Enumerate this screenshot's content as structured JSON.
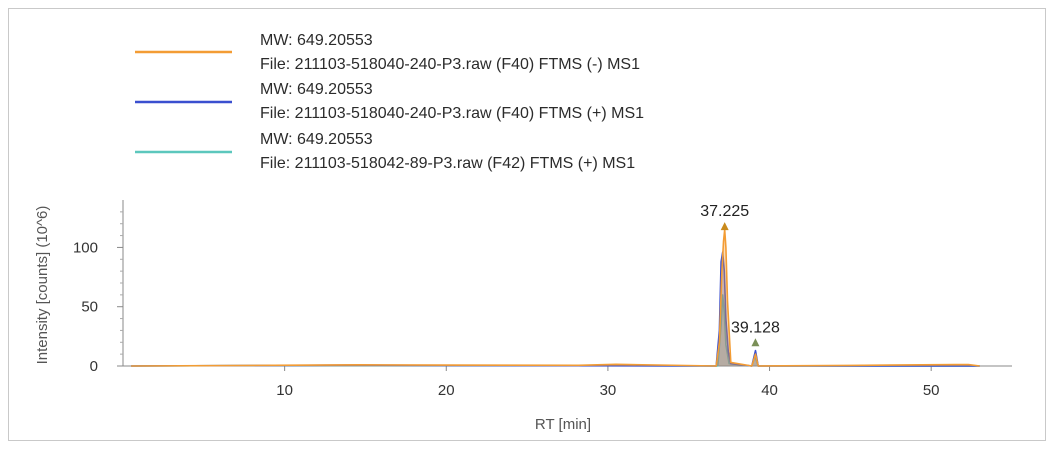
{
  "chart_data": {
    "type": "line",
    "xlabel": "RT [min]",
    "ylabel": "Intensity [counts] (10^6)",
    "xlim": [
      0,
      55
    ],
    "ylim": [
      0,
      140
    ],
    "x_ticks": [
      10,
      20,
      30,
      40,
      50
    ],
    "y_ticks": [
      0,
      50,
      100
    ],
    "grid": false,
    "legend_position": "top-left",
    "series": [
      {
        "name": "MW: 649.20553",
        "file": "File: 211103-518040-240-P3.raw (F40) FTMS (-) MS1",
        "color": "#f39c34",
        "x": [
          0.5,
          11.8,
          14.6,
          19.7,
          28.2,
          30.5,
          36.7,
          36.9,
          37.05,
          37.15,
          37.225,
          37.3,
          37.4,
          37.6,
          38.9,
          39.128,
          39.3,
          45.0,
          51.5,
          52.3,
          53.0
        ],
        "y": [
          0,
          0.8,
          1.0,
          0.8,
          0.6,
          1.4,
          0,
          20,
          80,
          105,
          115,
          100,
          55,
          3,
          0,
          10,
          0,
          0.5,
          1.2,
          1.2,
          0
        ]
      },
      {
        "name": "MW: 649.20553",
        "file": "File: 211103-518040-240-P3.raw (F40) FTMS (+) MS1",
        "color": "#3a4fcf",
        "x": [
          0.5,
          14.6,
          19.7,
          36.7,
          36.9,
          37.0,
          37.1,
          37.2,
          37.3,
          37.45,
          37.6,
          38.9,
          39.128,
          39.3,
          53.0
        ],
        "y": [
          0,
          0.8,
          0.5,
          0,
          30,
          88,
          96,
          80,
          40,
          12,
          2,
          0,
          13,
          0,
          0
        ]
      },
      {
        "name": "MW: 649.20553",
        "file": "File: 211103-518042-89-P3.raw (F42) FTMS (+) MS1",
        "color": "#5cc7bd",
        "x": [
          0.5,
          11.8,
          28.2,
          36.8,
          37.0,
          37.1,
          37.2,
          37.3,
          37.5,
          38.9,
          39.1,
          39.3,
          53.0
        ],
        "y": [
          0,
          0.6,
          0.4,
          0,
          35,
          60,
          45,
          18,
          2,
          0,
          8,
          0,
          0
        ]
      }
    ],
    "annotations": [
      {
        "label": "37.225",
        "x": 37.225,
        "y": 118
      },
      {
        "label": "39.128",
        "x": 39.128,
        "y": 20
      }
    ]
  }
}
